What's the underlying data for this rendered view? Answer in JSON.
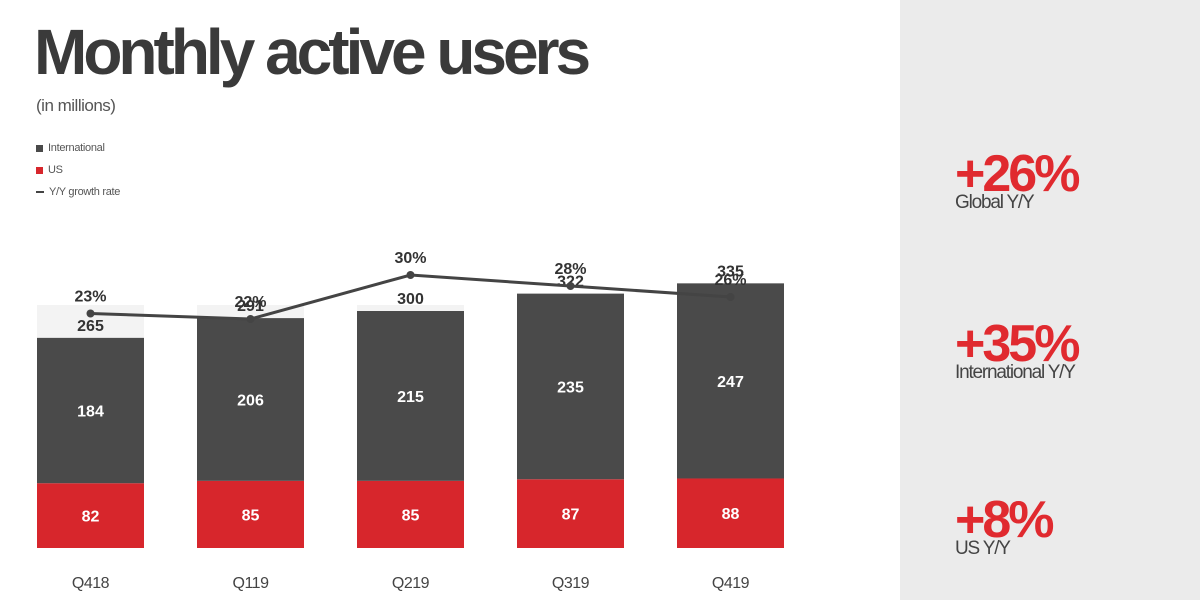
{
  "header": {
    "title": "Monthly active users",
    "subtitle": "(in millions)"
  },
  "legend": {
    "items": [
      {
        "label": "International",
        "color": "#4a4a4a",
        "kind": "box"
      },
      {
        "label": "US",
        "color": "#d7262c",
        "kind": "box"
      },
      {
        "label": "Y/Y growth rate",
        "color": "#444444",
        "kind": "line"
      }
    ]
  },
  "chart_data": {
    "type": "bar",
    "stacked": true,
    "categories": [
      "Q418",
      "Q119",
      "Q219",
      "Q319",
      "Q419"
    ],
    "series": [
      {
        "name": "US",
        "values": [
          82,
          85,
          85,
          87,
          88
        ],
        "color": "#d7262c"
      },
      {
        "name": "International",
        "values": [
          184,
          206,
          215,
          235,
          247
        ],
        "color": "#4a4a4a"
      }
    ],
    "totals": [
      265,
      291,
      300,
      322,
      335
    ],
    "growth": {
      "name": "Y/Y growth rate",
      "values": [
        23,
        22,
        30,
        28,
        26
      ],
      "labels": [
        "23%",
        "22%",
        "30%",
        "28%",
        "26%"
      ],
      "color": "#444444"
    },
    "title": "Monthly active users",
    "ylabel": "(in millions)"
  },
  "kpis": [
    {
      "value": "+26%",
      "label": "Global Y/Y"
    },
    {
      "value": "+35%",
      "label": "International Y/Y"
    },
    {
      "value": "+8%",
      "label": "US Y/Y"
    }
  ]
}
